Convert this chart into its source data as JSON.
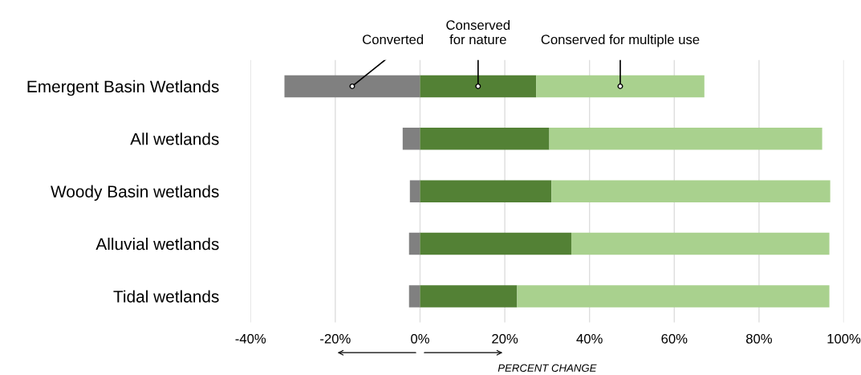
{
  "chart_data": {
    "type": "bar",
    "orientation": "horizontal",
    "stacked": true,
    "categories": [
      "Emergent Basin Wetlands",
      "All wetlands",
      "Woody Basin wetlands",
      "Alluvial wetlands",
      "Tidal wetlands"
    ],
    "series": [
      {
        "name": "Converted",
        "color": "#808080",
        "values": [
          -32,
          -4.1,
          -2.4,
          -2.6,
          -2.6
        ]
      },
      {
        "name": "Conserved\nfor nature",
        "color": "#538135",
        "values": [
          27.4,
          30.5,
          31,
          35.7,
          22.9
        ]
      },
      {
        "name": "Conserved for multiple use",
        "color": "#a9d18e",
        "values": [
          39.7,
          64.4,
          65.8,
          60.9,
          73.7
        ]
      }
    ],
    "xlabel": "PERCENT CHANGE",
    "xlim": [
      -40,
      100
    ],
    "xticks": [
      {
        "value": -40,
        "label": "-40%"
      },
      {
        "value": -20,
        "label": "-20%"
      },
      {
        "value": 0,
        "label": "0%"
      },
      {
        "value": 20,
        "label": "20%"
      },
      {
        "value": 40,
        "label": "40%"
      },
      {
        "value": 60,
        "label": "60%"
      },
      {
        "value": 80,
        "label": "80%"
      },
      {
        "value": 100,
        "label": "100%"
      }
    ],
    "grid": "x",
    "legend": false
  }
}
